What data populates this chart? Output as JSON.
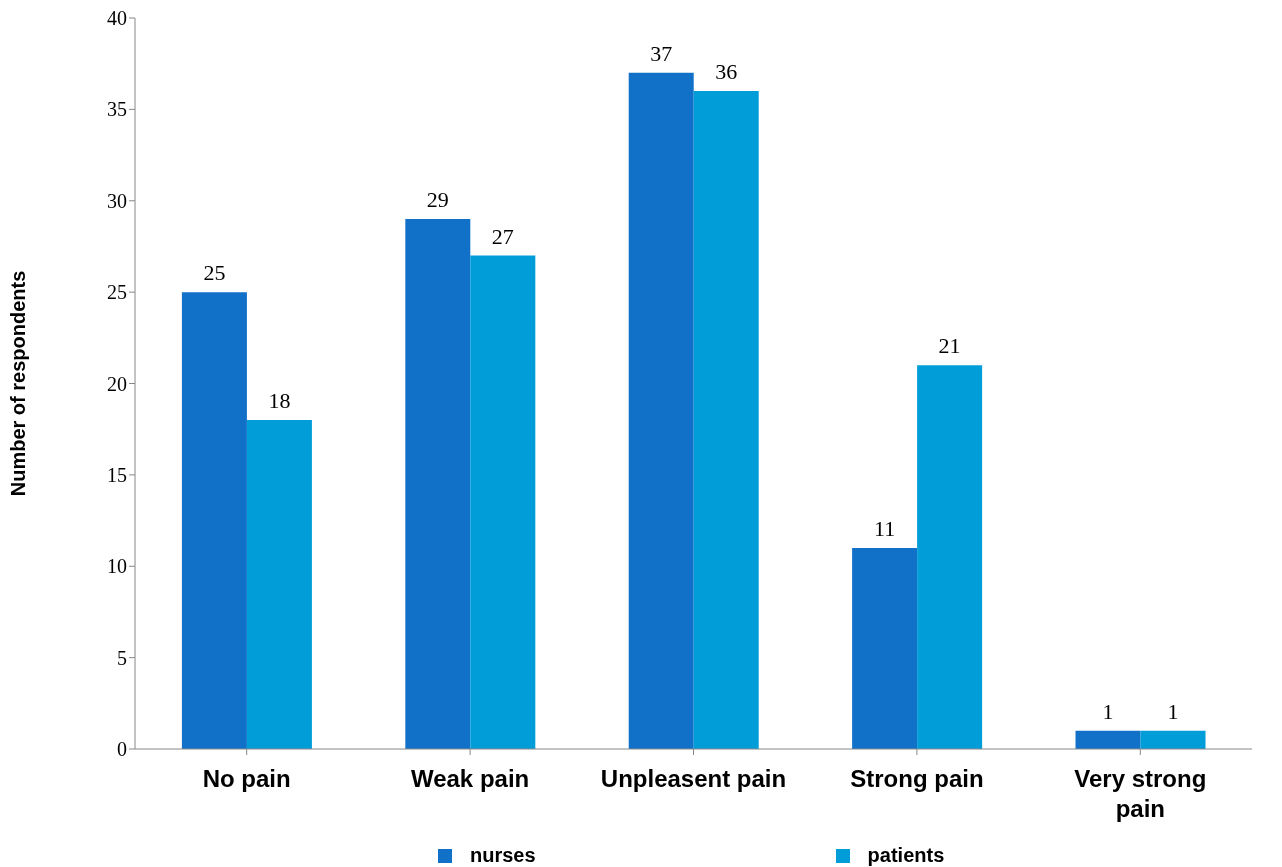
{
  "chart_data": {
    "type": "bar",
    "ylabel": "Number of respondents",
    "categories": [
      "No pain",
      "Weak pain",
      "Unpleasent pain",
      "Strong pain",
      "Very strong pain"
    ],
    "series": [
      {
        "name": "nurses",
        "color": "#1170c8",
        "values": [
          25,
          29,
          37,
          11,
          1
        ]
      },
      {
        "name": "patients",
        "color": "#009dd9",
        "values": [
          18,
          27,
          36,
          21,
          1
        ]
      }
    ],
    "ylim": [
      0,
      40
    ],
    "yticks": [
      0,
      5,
      10,
      15,
      20,
      25,
      30,
      35,
      40
    ],
    "grid": false,
    "legend": "bottom",
    "data_labels": true
  }
}
